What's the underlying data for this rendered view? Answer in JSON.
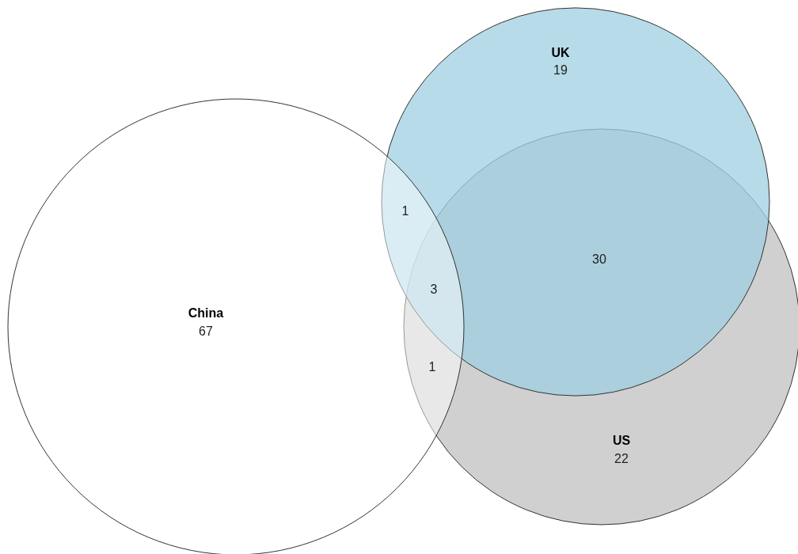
{
  "chart_data": {
    "type": "other",
    "categories": [
      "China",
      "UK",
      "US"
    ],
    "values": [
      67,
      19,
      22
    ],
    "colors": [
      "#ffffff",
      "#9fcfe0",
      "#d0d0d0"
    ],
    "annotations": [
      "1",
      "3",
      "1",
      "30"
    ],
    "data_labels": true
  }
}
